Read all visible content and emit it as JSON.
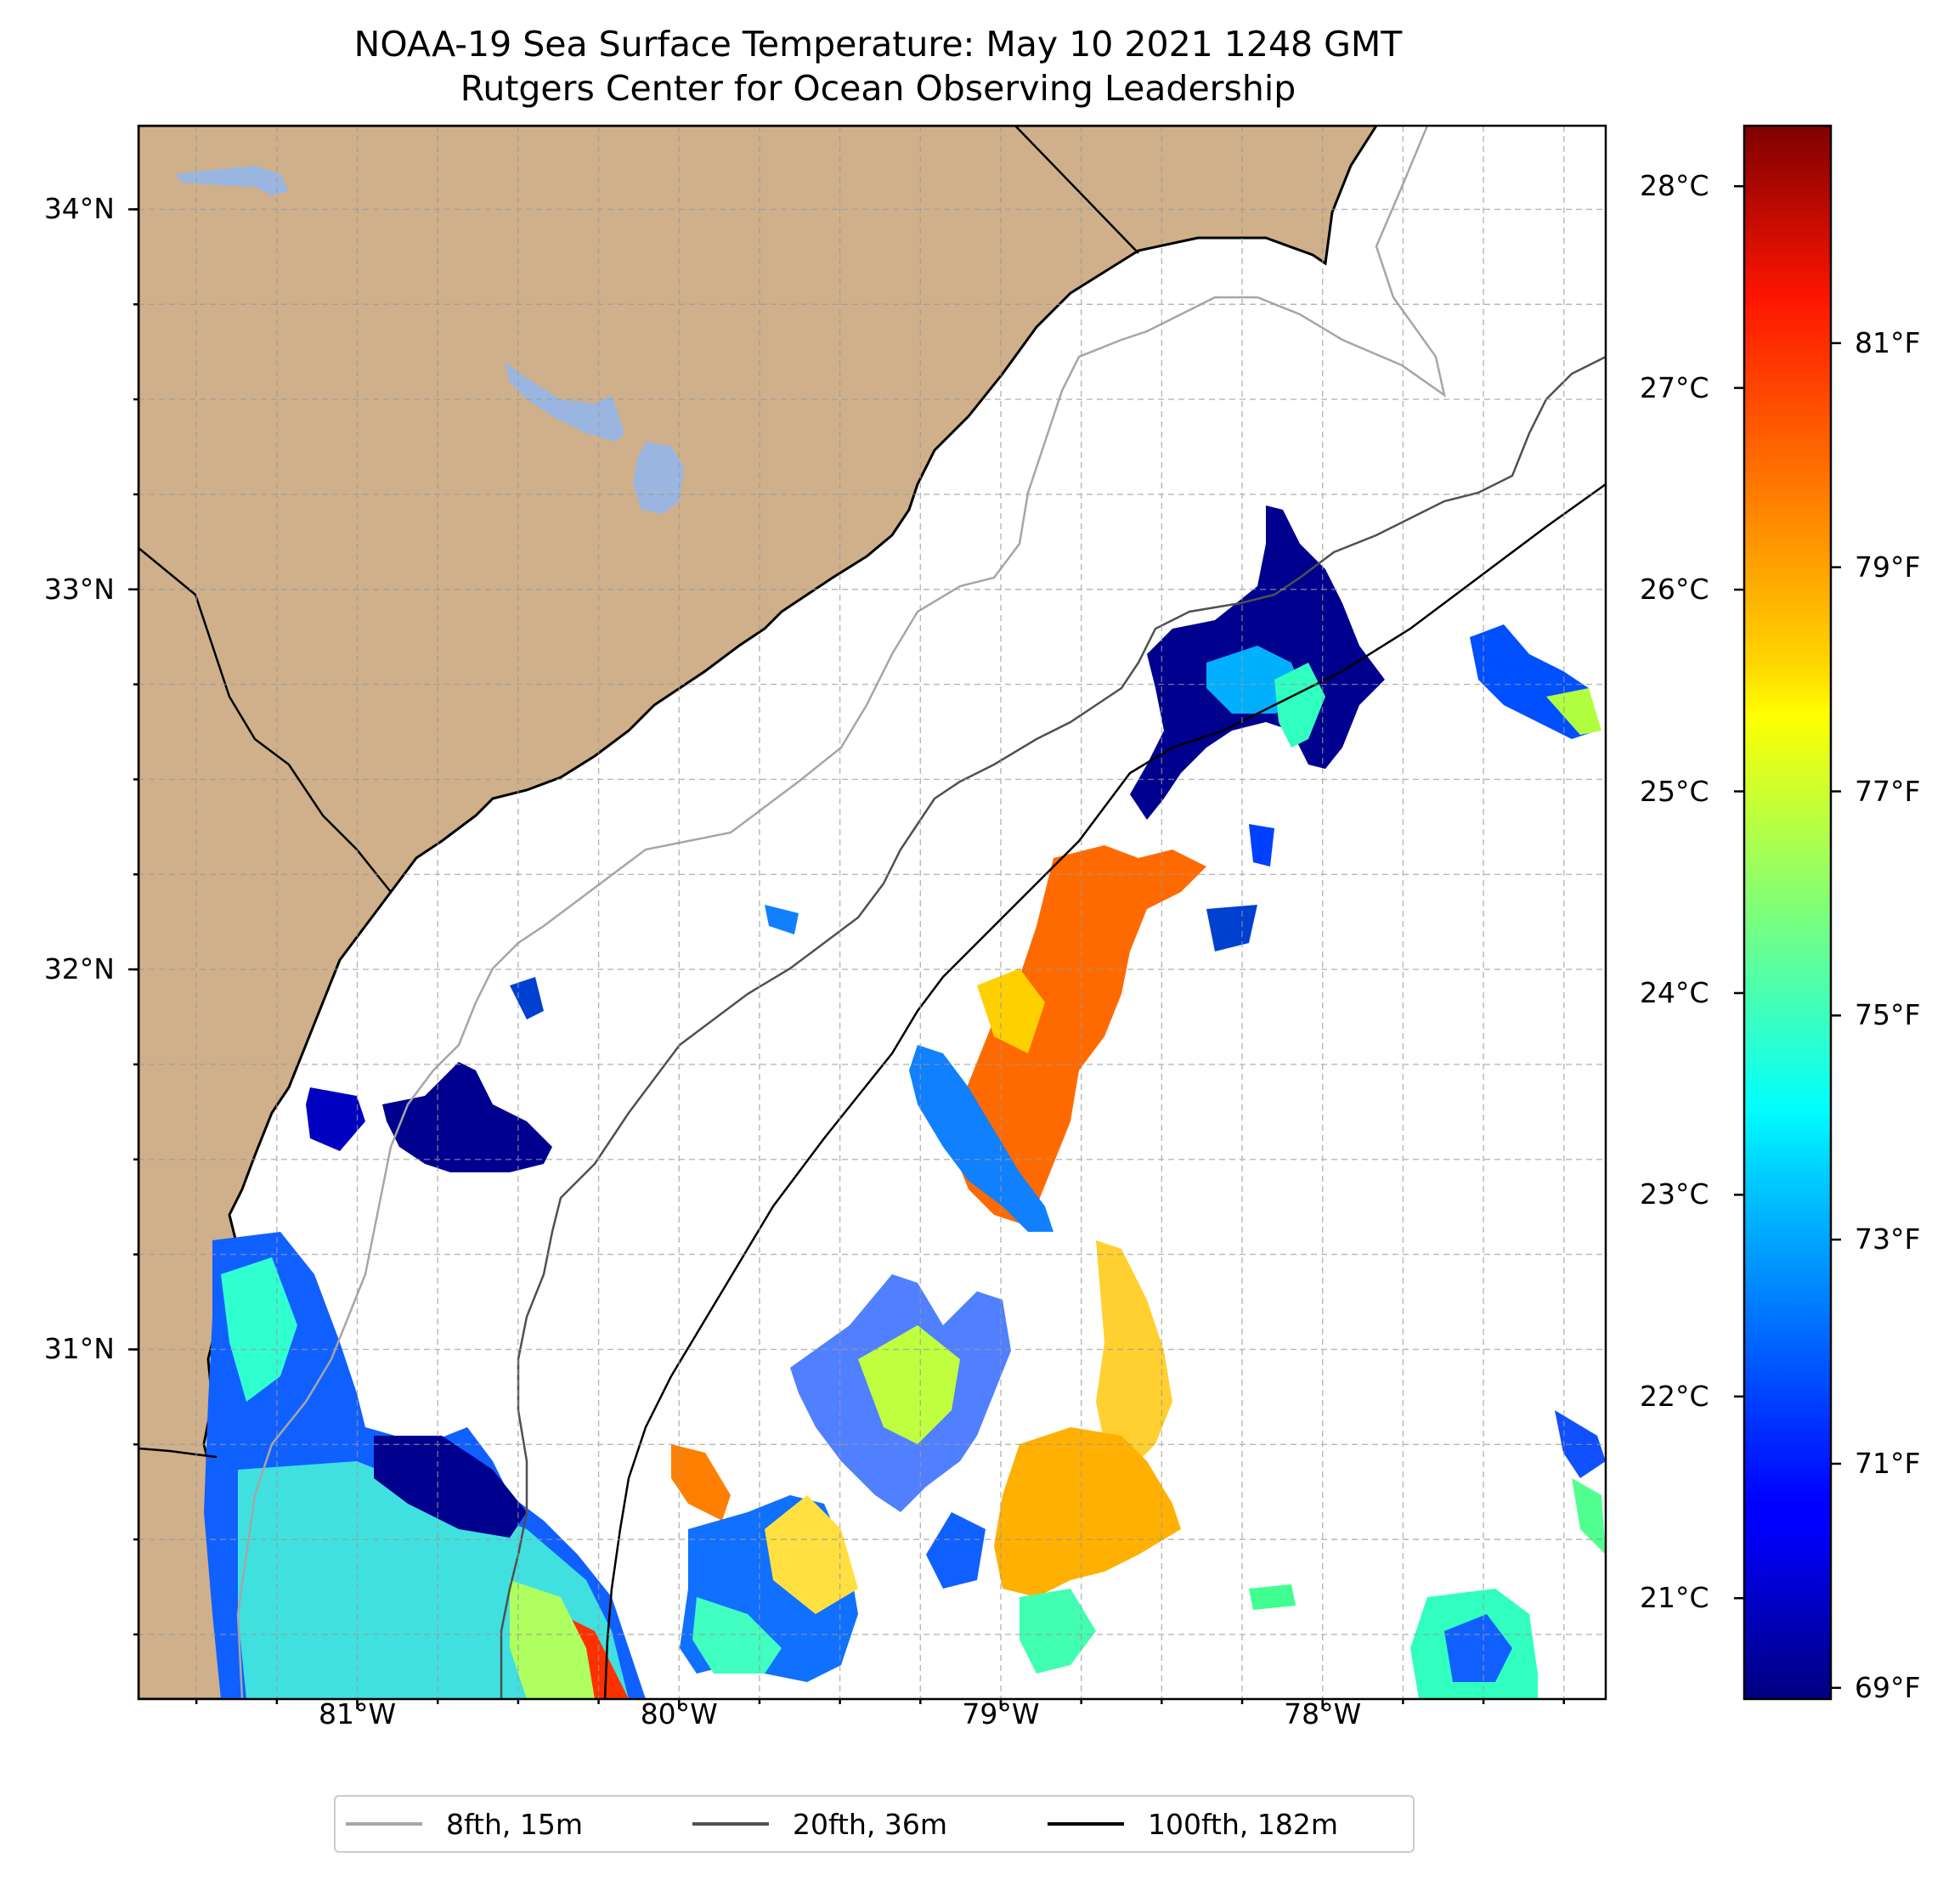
{
  "title": {
    "line1": "NOAA-19 Sea Surface Temperature: May 10 2021 1248 GMT",
    "line2": "Rutgers Center for Ocean Observing Leadership"
  },
  "map": {
    "lon_range": [
      -81.68,
      -77.12
    ],
    "lat_range": [
      30.08,
      34.22
    ],
    "lat_ticks": [
      {
        "value": 34,
        "label": "34°N"
      },
      {
        "value": 33,
        "label": "33°N"
      },
      {
        "value": 32,
        "label": "32°N"
      },
      {
        "value": 31,
        "label": "31°N"
      }
    ],
    "lon_ticks": [
      {
        "value": -81,
        "label": "81°W"
      },
      {
        "value": -80,
        "label": "80°W"
      },
      {
        "value": -79,
        "label": "79°W"
      },
      {
        "value": -78,
        "label": "78°W"
      }
    ],
    "gridlines": "dashed, every 0.25°",
    "land_color": "#cfb08a",
    "lake_color": "#9ab6e0"
  },
  "colorbar": {
    "colormap": "jet",
    "range_celsius": [
      20.5,
      28.3
    ],
    "celsius_ticks": [
      {
        "value": 21,
        "label": "21°C"
      },
      {
        "value": 22,
        "label": "22°C"
      },
      {
        "value": 23,
        "label": "23°C"
      },
      {
        "value": 24,
        "label": "24°C"
      },
      {
        "value": 25,
        "label": "25°C"
      },
      {
        "value": 26,
        "label": "26°C"
      },
      {
        "value": 27,
        "label": "27°C"
      },
      {
        "value": 28,
        "label": "28°C"
      }
    ],
    "fahrenheit_ticks": [
      {
        "value": 69,
        "label": "69°F"
      },
      {
        "value": 71,
        "label": "71°F"
      },
      {
        "value": 73,
        "label": "73°F"
      },
      {
        "value": 75,
        "label": "75°F"
      },
      {
        "value": 77,
        "label": "77°F"
      },
      {
        "value": 79,
        "label": "79°F"
      },
      {
        "value": 81,
        "label": "81°F"
      }
    ]
  },
  "legend": [
    {
      "label": "8fth, 15m",
      "color": "#a6a6a6"
    },
    {
      "label": "20fth, 36m",
      "color": "#505050"
    },
    {
      "label": "100fth, 182m",
      "color": "#000000"
    }
  ]
}
